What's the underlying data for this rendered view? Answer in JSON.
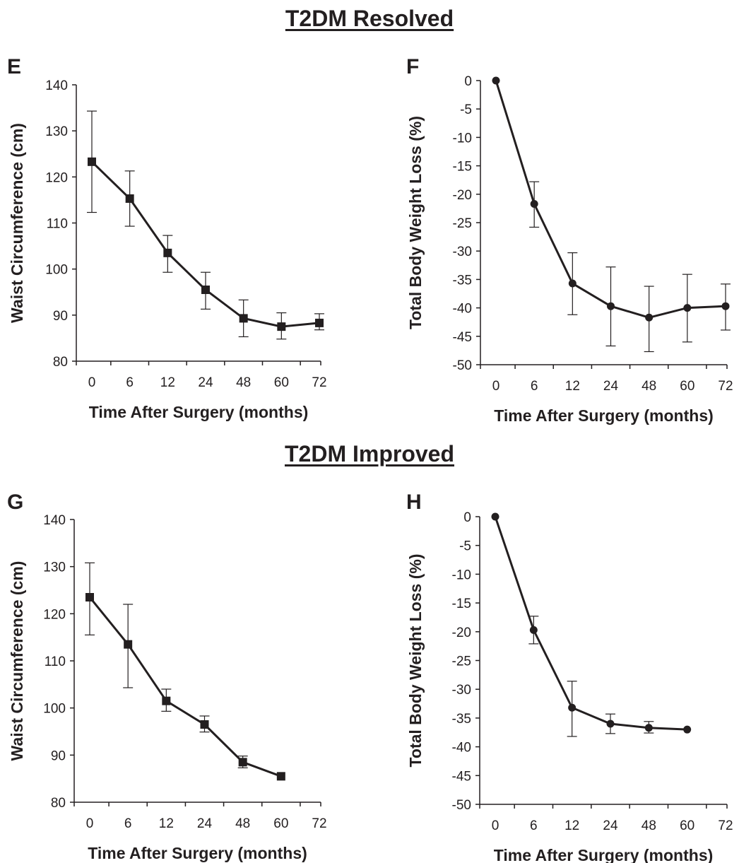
{
  "section_titles": {
    "resolved": "T2DM Resolved",
    "improved": "T2DM Improved"
  },
  "chart_data": [
    {
      "panel": "E",
      "type": "line",
      "marker": "square",
      "xlabel": "Time After Surgery (months)",
      "ylabel": "Waist Circumference (cm)",
      "categories": [
        "0",
        "6",
        "12",
        "24",
        "48",
        "60",
        "72"
      ],
      "ylim": [
        80,
        140
      ],
      "yticks": [
        80,
        90,
        100,
        110,
        120,
        130,
        140
      ],
      "values": [
        123.3,
        115.3,
        103.5,
        95.5,
        89.3,
        87.5,
        88.3
      ],
      "error_low": [
        112.3,
        109.3,
        99.3,
        91.3,
        85.3,
        84.8,
        86.8
      ],
      "error_high": [
        134.3,
        121.3,
        107.3,
        99.3,
        93.3,
        90.5,
        90.3
      ]
    },
    {
      "panel": "F",
      "type": "line",
      "marker": "circle",
      "xlabel": "Time After Surgery (months)",
      "ylabel": "Total Body Weight Loss (%)",
      "categories": [
        "0",
        "6",
        "12",
        "24",
        "48",
        "60",
        "72"
      ],
      "ylim": [
        -50,
        0
      ],
      "yticks": [
        0,
        -5,
        -10,
        -15,
        -20,
        -25,
        -30,
        -35,
        -40,
        -45,
        -50
      ],
      "values": [
        0,
        -21.7,
        -35.7,
        -39.7,
        -41.7,
        -40.0,
        -39.7
      ],
      "error_low": [
        0,
        -25.8,
        -41.2,
        -46.7,
        -47.7,
        -46.0,
        -43.9
      ],
      "error_high": [
        0,
        -17.8,
        -30.3,
        -32.8,
        -36.2,
        -34.1,
        -35.8
      ]
    },
    {
      "panel": "G",
      "type": "line",
      "marker": "square",
      "xlabel": "Time After Surgery (months)",
      "ylabel": "Waist Circumference (cm)",
      "categories": [
        "0",
        "6",
        "12",
        "24",
        "48",
        "60",
        "72"
      ],
      "ylim": [
        80,
        140
      ],
      "yticks": [
        80,
        90,
        100,
        110,
        120,
        130,
        140
      ],
      "values": [
        123.5,
        113.5,
        101.5,
        96.5,
        88.5,
        85.5,
        null
      ],
      "error_low": [
        115.5,
        104.3,
        99.3,
        94.9,
        87.3,
        null,
        null
      ],
      "error_high": [
        130.8,
        122.0,
        104.0,
        98.3,
        89.8,
        null,
        null
      ]
    },
    {
      "panel": "H",
      "type": "line",
      "marker": "circle",
      "xlabel": "Time After Surgery (months)",
      "ylabel": "Total Body Weight Loss (%)",
      "categories": [
        "0",
        "6",
        "12",
        "24",
        "48",
        "60",
        "72"
      ],
      "ylim": [
        -50,
        0
      ],
      "yticks": [
        0,
        -5,
        -10,
        -15,
        -20,
        -25,
        -30,
        -35,
        -40,
        -45,
        -50
      ],
      "values": [
        0,
        -19.7,
        -33.2,
        -36.0,
        -36.7,
        -37.0,
        null
      ],
      "error_low": [
        null,
        -22.1,
        -38.2,
        -37.7,
        -37.6,
        null,
        null
      ],
      "error_high": [
        null,
        -17.3,
        -28.6,
        -34.3,
        -35.6,
        null,
        null
      ]
    }
  ]
}
